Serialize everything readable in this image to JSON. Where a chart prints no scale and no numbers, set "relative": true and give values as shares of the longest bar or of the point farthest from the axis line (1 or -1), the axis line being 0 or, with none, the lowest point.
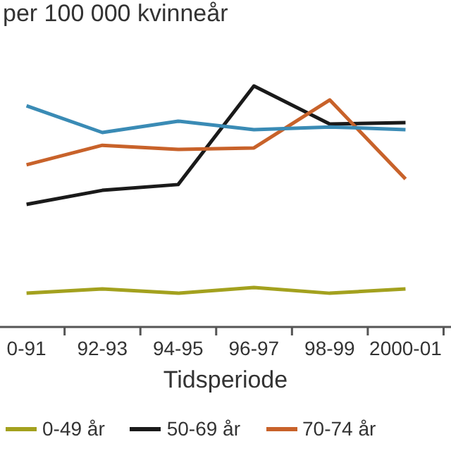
{
  "chart_data": {
    "type": "line",
    "ylabel": "per 100 000 kvinneår",
    "xlabel": "Tidsperiode",
    "relative": true,
    "categories": [
      "0-91",
      "92-93",
      "94-95",
      "96-97",
      "98-99",
      "2000-01"
    ],
    "series": [
      {
        "name": "0-49 år",
        "color": "#a3a11e",
        "values": [
          0.14,
          0.158,
          0.14,
          0.164,
          0.14,
          0.158
        ]
      },
      {
        "name": "50-69 år",
        "color": "#1a1a1a",
        "values": [
          0.509,
          0.567,
          0.591,
          1,
          0.842,
          0.848
        ]
      },
      {
        "name": "70-74 år",
        "color": "#c8622a",
        "values": [
          0.673,
          0.754,
          0.737,
          0.743,
          0.942,
          0.614
        ]
      },
      {
        "color": "#3a8bb5",
        "values": [
          0.918,
          0.807,
          0.854,
          0.819,
          0.83,
          0.819
        ]
      }
    ],
    "legend": "bottom",
    "marker": "none",
    "line_style": "solid"
  }
}
